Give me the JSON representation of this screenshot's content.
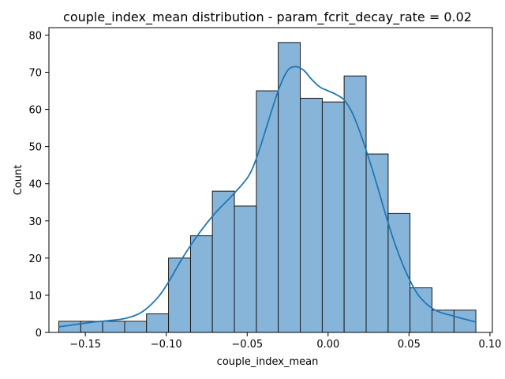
{
  "chart_data": {
    "type": "bar",
    "title": "couple_index_mean distribution - param_fcrit_decay_rate = 0.02",
    "xlabel": "couple_index_mean",
    "ylabel": "Count",
    "xlim": [
      -0.1725,
      0.1015
    ],
    "ylim": [
      0,
      82
    ],
    "xticks": [
      -0.15,
      -0.1,
      -0.05,
      0.0,
      0.05,
      0.1
    ],
    "xtick_labels": [
      "−0.15",
      "−0.10",
      "−0.05",
      "0.00",
      "0.05",
      "0.10"
    ],
    "yticks": [
      0,
      10,
      20,
      30,
      40,
      50,
      60,
      70,
      80
    ],
    "ytick_labels": [
      "0",
      "10",
      "20",
      "30",
      "40",
      "50",
      "60",
      "70",
      "80"
    ],
    "grid": false,
    "bin_edges": [
      -0.1664,
      -0.1528,
      -0.1393,
      -0.1257,
      -0.1122,
      -0.0986,
      -0.085,
      -0.0715,
      -0.0579,
      -0.0443,
      -0.0308,
      -0.0172,
      -0.0036,
      0.0099,
      0.0235,
      0.0371,
      0.0506,
      0.0642,
      0.0778,
      0.0913
    ],
    "counts": [
      3,
      3,
      3,
      3,
      5,
      20,
      26,
      38,
      34,
      65,
      78,
      63,
      62,
      69,
      48,
      32,
      12,
      6,
      6
    ],
    "bar_color": "#87b5d9",
    "bar_edge_color": "#1a1a1a",
    "kde": {
      "color": "#1f77b4",
      "x": [
        -0.1664,
        -0.155,
        -0.145,
        -0.135,
        -0.125,
        -0.115,
        -0.105,
        -0.098,
        -0.09,
        -0.08,
        -0.07,
        -0.06,
        -0.05,
        -0.045,
        -0.04,
        -0.035,
        -0.03,
        -0.025,
        -0.02,
        -0.015,
        -0.01,
        -0.005,
        0.0,
        0.005,
        0.01,
        0.015,
        0.02,
        0.025,
        0.03,
        0.035,
        0.04,
        0.045,
        0.05,
        0.055,
        0.06,
        0.065,
        0.07,
        0.075,
        0.08,
        0.085,
        0.0913
      ],
      "y": [
        1.5,
        2.2,
        2.8,
        3.2,
        3.8,
        5.5,
        9.5,
        14.0,
        20.0,
        26.5,
        32.0,
        36.5,
        41.5,
        46.0,
        52.5,
        59.5,
        66.0,
        70.5,
        71.5,
        70.5,
        68.0,
        66.0,
        65.0,
        64.0,
        62.5,
        59.0,
        53.5,
        47.0,
        40.0,
        32.5,
        25.5,
        19.5,
        14.5,
        10.5,
        8.0,
        6.3,
        5.3,
        4.7,
        4.1,
        3.5,
        2.8
      ]
    }
  }
}
